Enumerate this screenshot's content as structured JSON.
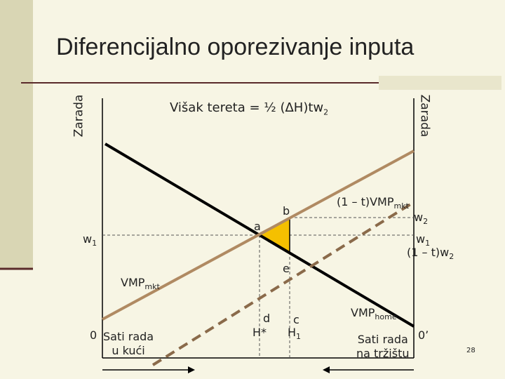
{
  "title": "Diferencijalno oporezivanje inputa",
  "axes": {
    "left_label": "Zarada",
    "right_label": "Zarada"
  },
  "formula": {
    "text": "Višak tereta = ½ (ΔH)tw",
    "sub": "2"
  },
  "labels": {
    "tvmp_mkt": {
      "text": "(1 – t)VMP",
      "sub": "mkt"
    },
    "w2": {
      "text": "w",
      "sub": "2"
    },
    "b": "b",
    "a": "a",
    "w1_left": {
      "text": "w",
      "sub": "1"
    },
    "w1_right": {
      "text": "w",
      "sub": "1"
    },
    "tw2": {
      "text": "(1 – t)w",
      "sub": "2"
    },
    "e": "e",
    "vmp_mkt": {
      "text": "VMP",
      "sub": "mkt"
    },
    "d": "d",
    "h_star": "H*",
    "c": "c",
    "h1": {
      "text": "H",
      "sub": "1"
    },
    "vmp_home": {
      "text": "VMP",
      "sub": "home"
    },
    "origin_left": "0",
    "hours_home": [
      "Sati rada",
      "u kući"
    ],
    "hours_market": [
      "Sati rada",
      "na tržištu"
    ],
    "origin_right": "0’"
  },
  "page_number": "28"
}
